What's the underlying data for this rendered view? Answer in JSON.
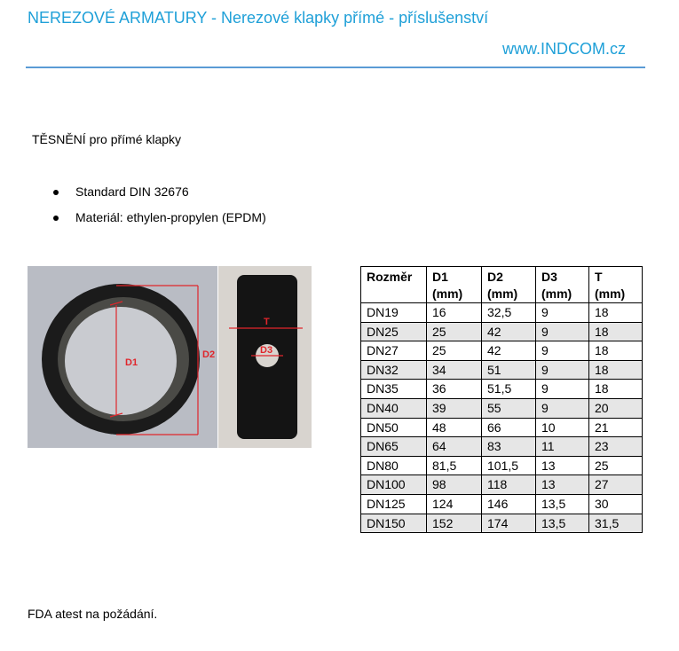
{
  "header": {
    "title": "NEREZOVÉ ARMATURY - Nerezové klapky přímé - příslušenství",
    "url": "www.INDCOM.cz"
  },
  "subtitle": "TĚSNĚNÍ pro přímé klapky",
  "bullets": [
    "Standard DIN 32676",
    "Materiál: ethylen-propylen (EPDM)"
  ],
  "photo": {
    "labels": {
      "d1": "D1",
      "d2": "D2",
      "t": "T",
      "d3": "D3"
    },
    "annotation_color": "#e0252b"
  },
  "table": {
    "headers": [
      [
        "Rozměr",
        ""
      ],
      [
        "D1",
        "(mm)"
      ],
      [
        "D2",
        "(mm)"
      ],
      [
        "D3",
        "(mm)"
      ],
      [
        "T",
        "(mm)"
      ]
    ],
    "rows": [
      [
        "DN19",
        "16",
        "32,5",
        "9",
        "18"
      ],
      [
        "DN25",
        "25",
        "42",
        "9",
        "18"
      ],
      [
        "DN27",
        "25",
        "42",
        "9",
        "18"
      ],
      [
        "DN32",
        "34",
        "51",
        "9",
        "18"
      ],
      [
        "DN35",
        "36",
        "51,5",
        "9",
        "18"
      ],
      [
        "DN40",
        "39",
        "55",
        "9",
        "20"
      ],
      [
        "DN50",
        "48",
        "66",
        "10",
        "21"
      ],
      [
        "DN65",
        "64",
        "83",
        "11",
        "23"
      ],
      [
        "DN80",
        "81,5",
        "101,5",
        "13",
        "25"
      ],
      [
        "DN100",
        "98",
        "118",
        "13",
        "27"
      ],
      [
        "DN125",
        "124",
        "146",
        "13,5",
        "30"
      ],
      [
        "DN150",
        "152",
        "174",
        "13,5",
        "31,5"
      ]
    ]
  },
  "footer": "FDA atest na požádání."
}
